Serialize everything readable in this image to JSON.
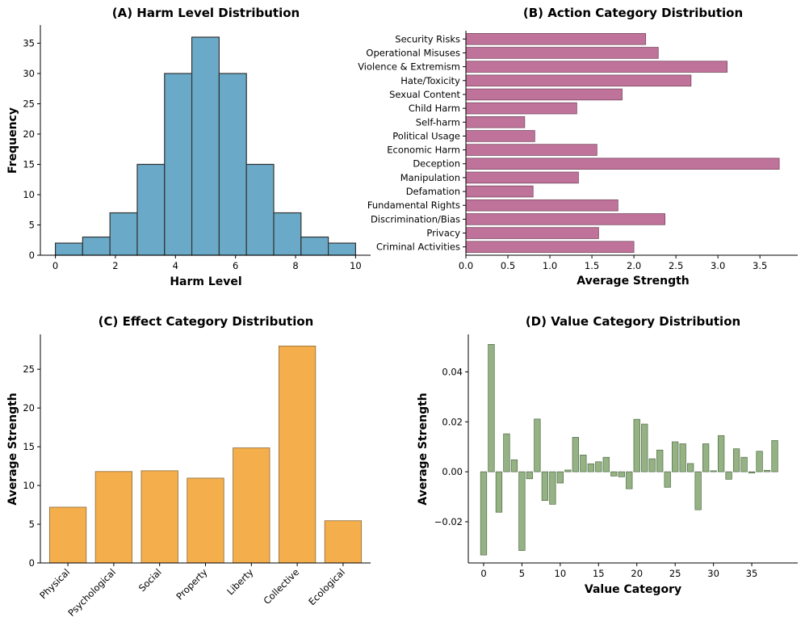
{
  "chart_data": [
    {
      "type": "bar",
      "title": "(A) Harm Level Distribution",
      "xlabel": "Harm Level",
      "ylabel": "Frequency",
      "bin_edges": [
        0,
        0.909,
        1.818,
        2.727,
        3.636,
        4.545,
        5.455,
        6.364,
        7.273,
        8.182,
        9.091,
        10
      ],
      "values": [
        2,
        3,
        7,
        15,
        30,
        36,
        30,
        15,
        7,
        3,
        2
      ],
      "xlim": [
        -0.5,
        10.5
      ],
      "ylim": [
        0,
        38
      ],
      "xticks": [
        0,
        2,
        4,
        6,
        8,
        10
      ],
      "yticks": [
        0,
        5,
        10,
        15,
        20,
        25,
        30,
        35
      ],
      "color": "#6aaac8"
    },
    {
      "type": "barh",
      "title": "(B) Action Category Distribution",
      "xlabel": "Average Strength",
      "ylabel": "",
      "categories": [
        "Criminal Activities",
        "Privacy",
        "Discrimination/Bias",
        "Fundamental Rights",
        "Defamation",
        "Manipulation",
        "Deception",
        "Economic Harm",
        "Political Usage",
        "Self-harm",
        "Child Harm",
        "Sexual Content",
        "Hate/Toxicity",
        "Violence & Extremism",
        "Operational Misuses",
        "Security Risks"
      ],
      "values": [
        2.0,
        1.58,
        2.37,
        1.81,
        0.8,
        1.34,
        3.73,
        1.56,
        0.82,
        0.7,
        1.32,
        1.86,
        2.68,
        3.11,
        2.29,
        2.14
      ],
      "xlim": [
        0,
        3.95
      ],
      "xticks": [
        "0.0",
        "0.5",
        "1.0",
        "1.5",
        "2.0",
        "2.5",
        "3.0",
        "3.5"
      ],
      "color": "#c0739a"
    },
    {
      "type": "bar",
      "title": "(C) Effect Category Distribution",
      "xlabel": "",
      "ylabel": "Average Strength",
      "categories": [
        "Physical",
        "Psychological",
        "Social",
        "Property",
        "Liberty",
        "Collective",
        "Ecological"
      ],
      "values": [
        7.2,
        11.8,
        11.9,
        10.95,
        14.85,
        28.0,
        5.45
      ],
      "ylim": [
        0,
        29.5
      ],
      "yticks": [
        0,
        5,
        10,
        15,
        20,
        25
      ],
      "color": "#f4ae4c"
    },
    {
      "type": "bar",
      "title": "(D) Value Category Distribution",
      "xlabel": "Value Category",
      "ylabel": "Average Strength",
      "x": [
        0,
        1,
        2,
        3,
        4,
        5,
        6,
        7,
        8,
        9,
        10,
        11,
        12,
        13,
        14,
        15,
        16,
        17,
        18,
        19,
        20,
        21,
        22,
        23,
        24,
        25,
        26,
        27,
        28,
        29,
        30,
        31,
        32,
        33,
        34,
        35,
        36,
        37,
        38
      ],
      "values": [
        -0.0333,
        0.051,
        -0.0162,
        0.0152,
        0.0048,
        -0.0315,
        -0.0028,
        0.0211,
        -0.0115,
        -0.013,
        -0.0045,
        0.0007,
        0.0138,
        0.0067,
        0.0032,
        0.004,
        0.0058,
        -0.0017,
        -0.002,
        -0.0068,
        0.021,
        0.0191,
        0.0052,
        0.0087,
        -0.0062,
        0.012,
        0.0112,
        0.0033,
        -0.0152,
        0.0112,
        0.0004,
        0.0145,
        -0.003,
        0.0092,
        0.0058,
        -0.0005,
        0.0082,
        0.0006,
        0.0125
      ],
      "xlim": [
        -2,
        41
      ],
      "ylim": [
        -0.0365,
        0.055
      ],
      "xticks": [
        0,
        5,
        10,
        15,
        20,
        25,
        30,
        35
      ],
      "yticks": [
        -0.02,
        0.0,
        0.02,
        0.04
      ],
      "ytick_labels": [
        "−0.02",
        "0.00",
        "0.02",
        "0.04"
      ],
      "color": "#95b284"
    }
  ]
}
